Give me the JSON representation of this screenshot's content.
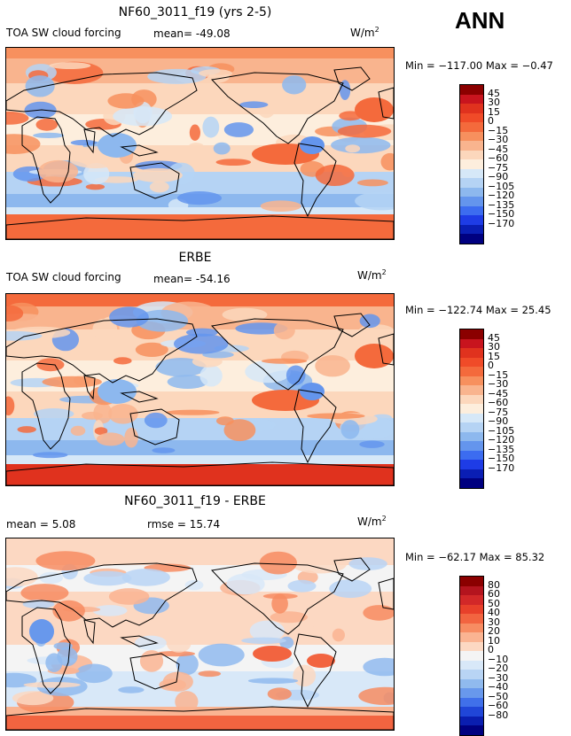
{
  "season": "ANN",
  "panels": [
    {
      "title": "NF60_3011_f19 (yrs 2-5)",
      "variable": "TOA SW cloud forcing",
      "mean_label": "mean= -49.08",
      "rmse_label": "",
      "units": "W/m",
      "units_sup": "2",
      "minmax": "Min = −117.00 Max =  −0.47",
      "colorbar": {
        "labels": [
          "45",
          "30",
          "15",
          "0",
          "−15",
          "−30",
          "−45",
          "−60",
          "−75",
          "−90",
          "−105",
          "−120",
          "−135",
          "−150",
          "−170"
        ],
        "colors": [
          "#8b0000",
          "#c8141e",
          "#e0321e",
          "#f04b28",
          "#f46a3c",
          "#f7905e",
          "#f9b48e",
          "#fcd7bc",
          "#fdeedd",
          "#d6e8f8",
          "#b5d3f4",
          "#8db8ee",
          "#6495ed",
          "#3c6cf0",
          "#1e3ce6",
          "#0a1eb4",
          "#000080"
        ]
      }
    },
    {
      "title": "ERBE",
      "variable": "TOA SW cloud forcing",
      "mean_label": "mean= -54.16",
      "rmse_label": "",
      "units": "W/m",
      "units_sup": "2",
      "minmax": "Min = −122.74 Max =  25.45",
      "colorbar": {
        "labels": [
          "45",
          "30",
          "15",
          "0",
          "−15",
          "−30",
          "−45",
          "−60",
          "−75",
          "−90",
          "−105",
          "−120",
          "−135",
          "−150",
          "−170"
        ],
        "colors": [
          "#8b0000",
          "#c8141e",
          "#e0321e",
          "#f04b28",
          "#f46a3c",
          "#f7905e",
          "#f9b48e",
          "#fcd7bc",
          "#fdeedd",
          "#d6e8f8",
          "#b5d3f4",
          "#8db8ee",
          "#6495ed",
          "#3c6cf0",
          "#1e3ce6",
          "#0a1eb4",
          "#000080"
        ]
      }
    },
    {
      "title": "NF60_3011_f19 - ERBE",
      "variable": "",
      "mean_label": "mean =    5.08",
      "rmse_label": "rmse =   15.74",
      "units": "W/m",
      "units_sup": "2",
      "minmax": "Min = −62.17 Max =  85.32",
      "colorbar": {
        "labels": [
          "80",
          "60",
          "50",
          "40",
          "30",
          "20",
          "10",
          "0",
          "−10",
          "−20",
          "−30",
          "−40",
          "−50",
          "−60",
          "−80"
        ],
        "colors": [
          "#8b0000",
          "#b4141e",
          "#d22828",
          "#e8402a",
          "#f26440",
          "#f78c62",
          "#fab492",
          "#fcd8c2",
          "#f4f4f4",
          "#d8e8f8",
          "#b8d4f4",
          "#90baee",
          "#6898ec",
          "#4070ea",
          "#2046d8",
          "#0a1eb0",
          "#000080"
        ]
      }
    }
  ]
}
